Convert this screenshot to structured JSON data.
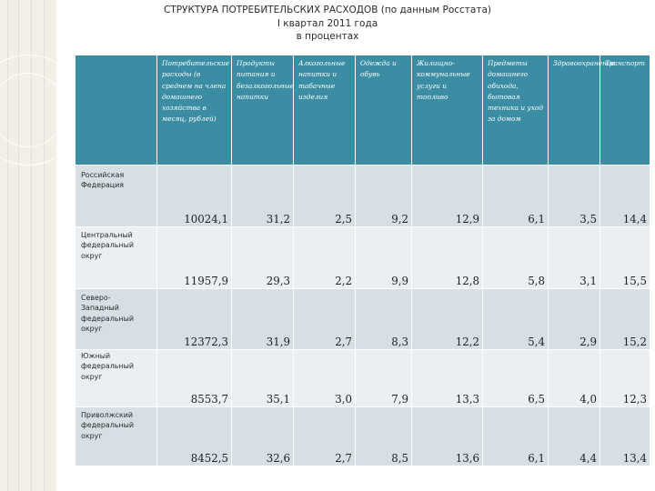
{
  "title": {
    "line1": "СТРУКТУРА ПОТРЕБИТЕЛЬСКИХ РАСХОДОВ (по данным Росстата)",
    "line2": "I квартал 2011 года",
    "line3": "в процентах"
  },
  "table": {
    "headers": [
      "Потребительские расходы (в среднем на члена домашнего хозяйства в месяц, рублей)",
      "Продукты питания и безалкогольные напитки",
      "Алкогольные напитки и табачные изделия",
      "Одежда и обувь",
      "Жилищно-коммунальные услуги и топливо",
      "Предметы домашнего обихода, бытовая техника и уход за домом",
      "Здравоохранение",
      "Транспорт"
    ],
    "rows": [
      {
        "region": "Российская Федерация",
        "values": [
          "10024,1",
          "31,2",
          "2,5",
          "9,2",
          "12,9",
          "6,1",
          "3,5",
          "14,4"
        ]
      },
      {
        "region": "Центральный федеральный округ",
        "values": [
          "11957,9",
          "29,3",
          "2,2",
          "9,9",
          "12,8",
          "5,8",
          "3,1",
          "15,5"
        ]
      },
      {
        "region": "Северо-Западный федеральный округ",
        "values": [
          "12372,3",
          "31,9",
          "2,7",
          "8,3",
          "12,2",
          "5,4",
          "2,9",
          "15,2"
        ]
      },
      {
        "region": "Южный федеральный округ",
        "values": [
          "8553,7",
          "35,1",
          "3,0",
          "7,9",
          "13,3",
          "6,5",
          "4,0",
          "12,3"
        ]
      },
      {
        "region": "Приволжский федеральный округ",
        "values": [
          "8452,5",
          "32,6",
          "2,7",
          "8,5",
          "13,6",
          "6,1",
          "4,4",
          "13,4"
        ]
      }
    ]
  },
  "colors": {
    "header": "#3b8da3",
    "row_a": "#d6dfe4",
    "row_b": "#ebeff2",
    "band": "#f2efe7"
  }
}
